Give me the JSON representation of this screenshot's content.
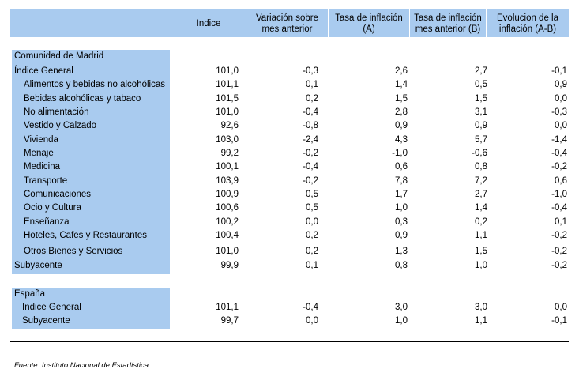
{
  "table": {
    "headers": [
      "Indice",
      "Variación sobre\nmes anterior",
      "Tasa de inflación\n(A)",
      "Tasa de inflación\nmes anterior (B)",
      "Evolucion de la\ninflación (A-B)"
    ],
    "madrid": {
      "section_label": "Comunidad de Madrid",
      "rows": [
        {
          "label": "Índice General",
          "values": [
            "101,0",
            "-0,3",
            "2,6",
            "2,7",
            "-0,1"
          ]
        },
        {
          "label": "Alimentos y bebidas no alcohólicas",
          "values": [
            "101,1",
            "0,1",
            "1,4",
            "0,5",
            "0,9"
          ]
        },
        {
          "label": "Bebidas alcohólicas y tabaco",
          "values": [
            "101,5",
            "0,2",
            "1,5",
            "1,5",
            "0,0"
          ]
        },
        {
          "label": "No alimentación",
          "values": [
            "101,0",
            "-0,4",
            "2,8",
            "3,1",
            "-0,3"
          ]
        },
        {
          "label": "Vestido y Calzado",
          "values": [
            "92,6",
            "-0,8",
            "0,9",
            "0,9",
            "0,0"
          ]
        },
        {
          "label": "Vivienda",
          "values": [
            "103,0",
            "-2,4",
            "4,3",
            "5,7",
            "-1,4"
          ]
        },
        {
          "label": "Menaje",
          "values": [
            "99,2",
            "-0,2",
            "-1,0",
            "-0,6",
            "-0,4"
          ]
        },
        {
          "label": "Medicina",
          "values": [
            "100,1",
            "-0,4",
            "0,6",
            "0,8",
            "-0,2"
          ]
        },
        {
          "label": "Transporte",
          "values": [
            "103,9",
            "-0,2",
            "7,8",
            "7,2",
            "0,6"
          ]
        },
        {
          "label": "Comunicaciones",
          "values": [
            "100,9",
            "0,5",
            "1,7",
            "2,7",
            "-1,0"
          ]
        },
        {
          "label": "Ocio y Cultura",
          "values": [
            "100,6",
            "0,5",
            "1,0",
            "1,4",
            "-0,4"
          ]
        },
        {
          "label": "Enseñanza",
          "values": [
            "100,2",
            "0,0",
            "0,3",
            "0,2",
            "0,1"
          ]
        },
        {
          "label": "Hoteles, Cafes y Restaurantes",
          "values": [
            "100,4",
            "0,2",
            "0,9",
            "1,1",
            "-0,2"
          ]
        },
        {
          "label": "Otros Bienes y Servicios",
          "values": [
            "101,0",
            "0,2",
            "1,3",
            "1,5",
            "-0,2"
          ]
        },
        {
          "label": "Subyacente",
          "values": [
            "99,9",
            "0,1",
            "0,8",
            "1,0",
            "-0,2"
          ]
        }
      ]
    },
    "espana": {
      "section_label": "España",
      "rows": [
        {
          "label": "Indice General",
          "values": [
            "101,1",
            "-0,4",
            "3,0",
            "3,0",
            "0,0"
          ]
        },
        {
          "label": "Subyacente",
          "values": [
            "99,7",
            "0,0",
            "1,0",
            "1,1",
            "-0,1"
          ]
        }
      ]
    }
  },
  "footer": "Fuente: Instituto Nacional de Estadística",
  "colors": {
    "header_bg": "#a9cbef",
    "label_bg": "#a9cbef"
  }
}
